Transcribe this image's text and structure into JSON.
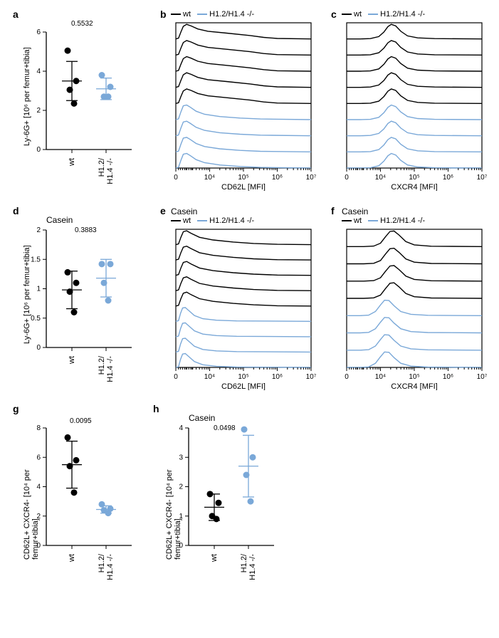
{
  "colors": {
    "wt": "#000000",
    "ko": "#7aa8d8",
    "axis": "#000000",
    "bg": "#ffffff"
  },
  "groups": {
    "wt_label": "wt",
    "ko_label": "H1.2/\nH1.4 -/-",
    "ko_legend": "H1.2/H1.4 -/-"
  },
  "axis_labels": {
    "cd62l": "CD62L [MFI]",
    "cxcr4": "CXCR4 [MFI]",
    "ly6g": "Ly-6G+ [10⁶ per femur+tibia]",
    "cd62l_cxcr4": "CD62L+ CXCR4- [10⁴ per femur+tibia]"
  },
  "casein_label": "Casein",
  "panels": {
    "a": {
      "label": "a",
      "pvalue": "0.5532",
      "ylim": [
        0,
        6
      ],
      "ytick_step": 2,
      "wt": {
        "points": [
          5.05,
          3.5,
          3.05,
          2.35
        ],
        "mean": 3.5,
        "sd": 1.0,
        "color": "#000000"
      },
      "ko": {
        "points": [
          3.8,
          3.2,
          2.7,
          2.7
        ],
        "mean": 3.1,
        "sd": 0.55,
        "color": "#7aa8d8"
      }
    },
    "d": {
      "label": "d",
      "title": "Casein",
      "pvalue": "0.3883",
      "ylim": [
        0,
        2
      ],
      "ytick_step": 0.5,
      "wt": {
        "points": [
          1.28,
          1.1,
          0.95,
          0.6
        ],
        "mean": 0.98,
        "sd": 0.32,
        "color": "#000000"
      },
      "ko": {
        "points": [
          1.42,
          1.42,
          1.1,
          0.8
        ],
        "mean": 1.18,
        "sd": 0.32,
        "color": "#7aa8d8"
      }
    },
    "g": {
      "label": "g",
      "pvalue": "0.0095",
      "ylim": [
        0,
        8
      ],
      "ytick_step": 2,
      "wt": {
        "points": [
          7.35,
          5.8,
          5.4,
          3.6
        ],
        "mean": 5.5,
        "sd": 1.6,
        "color": "#000000"
      },
      "ko": {
        "points": [
          2.8,
          2.5,
          2.4,
          2.2
        ],
        "mean": 2.45,
        "sd": 0.25,
        "color": "#7aa8d8"
      }
    },
    "h": {
      "label": "h",
      "title": "Casein",
      "pvalue": "0.0498",
      "ylim": [
        0,
        4
      ],
      "ytick_step": 1,
      "wt": {
        "points": [
          1.75,
          1.45,
          1.0,
          0.9
        ],
        "mean": 1.3,
        "sd": 0.45,
        "color": "#000000"
      },
      "ko": {
        "points": [
          3.95,
          3.0,
          2.4,
          1.5
        ],
        "mean": 2.7,
        "sd": 1.05,
        "color": "#7aa8d8"
      }
    }
  },
  "histogram_panels": {
    "b": {
      "label": "b",
      "xlabel": "CD62L [MFI]"
    },
    "c": {
      "label": "c",
      "xlabel": "CXCR4 [MFI]"
    },
    "e": {
      "label": "e",
      "title": "Casein",
      "xlabel": "CD62L [MFI]"
    },
    "f": {
      "label": "f",
      "title": "Casein",
      "xlabel": "CXCR4 [MFI]"
    }
  },
  "log_ticks": [
    "0",
    "10⁴",
    "10⁵",
    "10⁶",
    "10⁷"
  ],
  "marker_radius": 4.5,
  "line_width": 1.3,
  "axis_fontsize": 11,
  "tick_fontsize": 10
}
